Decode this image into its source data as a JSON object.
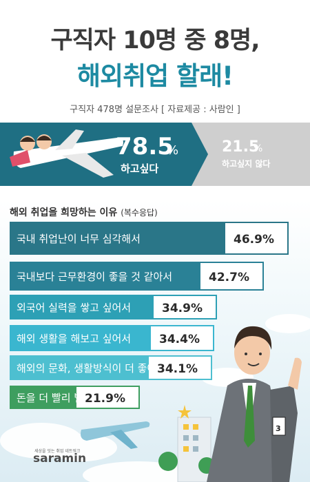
{
  "header": {
    "title_line1": "구직자 10명 중 8명,",
    "title_line2": "해외취업 할래!",
    "subtitle": "구직자 478명 설문조사 [ 자료제공 : 사람인 ]"
  },
  "survey": {
    "want": {
      "value": "78.5",
      "unit": "%",
      "label": "하고싶다"
    },
    "not_want": {
      "value": "21.5",
      "unit": "%",
      "label": "하고싶지 않다"
    }
  },
  "reasons": {
    "title": "해외 취업을 희망하는 이유",
    "note": "(복수응답)"
  },
  "chart_data": {
    "type": "bar",
    "orientation": "horizontal",
    "categories": [
      "국내 취업난이 너무 심각해서",
      "국내보다 근무환경이 좋을 것 같아서",
      "외국어 실력을 쌓고 싶어서",
      "해외 생활을 해보고 싶어서",
      "해외의 문화, 생활방식이 더 좋아서",
      "돈을 더 빨리 벌 수 있어서"
    ],
    "values": [
      46.9,
      42.7,
      34.9,
      34.4,
      34.1,
      21.9
    ],
    "value_labels": [
      "46.9",
      "42.7",
      "34.9",
      "34.4",
      "34.1",
      "21.9"
    ],
    "unit": "%",
    "colors": [
      "#2a7688",
      "#2a8196",
      "#2da0b5",
      "#3ab6cf",
      "#4dbfd0",
      "#3e9e5f"
    ]
  },
  "decor": {
    "mascot_tag": "3",
    "logo_small": "세상을 잇는 취업 네트워크",
    "logo": "saramin"
  }
}
